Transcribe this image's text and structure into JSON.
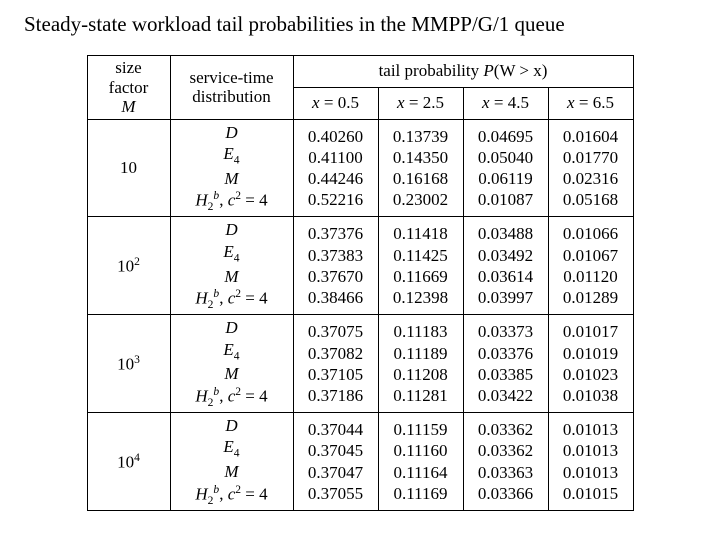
{
  "title": "Steady-state workload tail probabilities in the MMPP/G/1 queue",
  "headers": {
    "size_line1": "size",
    "size_line2": "factor",
    "size_sym": "M",
    "dist_line1": "service-time",
    "dist_line2": "distribution",
    "tail_label": "tail probability ",
    "tail_expr_P": "P",
    "tail_expr_paren": "(W > x)",
    "xeq": "x",
    "eq": " = ",
    "x_vals": [
      "0.5",
      "2.5",
      "4.5",
      "6.5"
    ]
  },
  "dist_labels": {
    "D": "D",
    "E": "E",
    "E_sub": "4",
    "M": "M",
    "H": "H",
    "H_sub": "2",
    "H_sup": "b",
    "c": "c",
    "c_sup": "2",
    "eq4": " = 4",
    "comma": ", "
  },
  "groups": [
    {
      "size_plain": "10",
      "size_exp": "",
      "cols": [
        "0.40260\n0.41100\n0.44246\n0.52216",
        "0.13739\n0.14350\n0.16168\n0.23002",
        "0.04695\n0.05040\n0.06119\n0.01087",
        "0.01604\n0.01770\n0.02316\n0.05168"
      ]
    },
    {
      "size_plain": "10",
      "size_exp": "2",
      "cols": [
        "0.37376\n0.37383\n0.37670\n0.38466",
        "0.11418\n0.11425\n0.11669\n0.12398",
        "0.03488\n0.03492\n0.03614\n0.03997",
        "0.01066\n0.01067\n0.01120\n0.01289"
      ]
    },
    {
      "size_plain": "10",
      "size_exp": "3",
      "cols": [
        "0.37075\n0.37082\n0.37105\n0.37186",
        "0.11183\n0.11189\n0.11208\n0.11281",
        "0.03373\n0.03376\n0.03385\n0.03422",
        "0.01017\n0.01019\n0.01023\n0.01038"
      ]
    },
    {
      "size_plain": "10",
      "size_exp": "4",
      "cols": [
        "0.37044\n0.37045\n0.37047\n0.37055",
        "0.11159\n0.11160\n0.11164\n0.11169",
        "0.03362\n0.03362\n0.03363\n0.03366",
        "0.01013\n0.01013\n0.01013\n0.01015"
      ]
    }
  ]
}
